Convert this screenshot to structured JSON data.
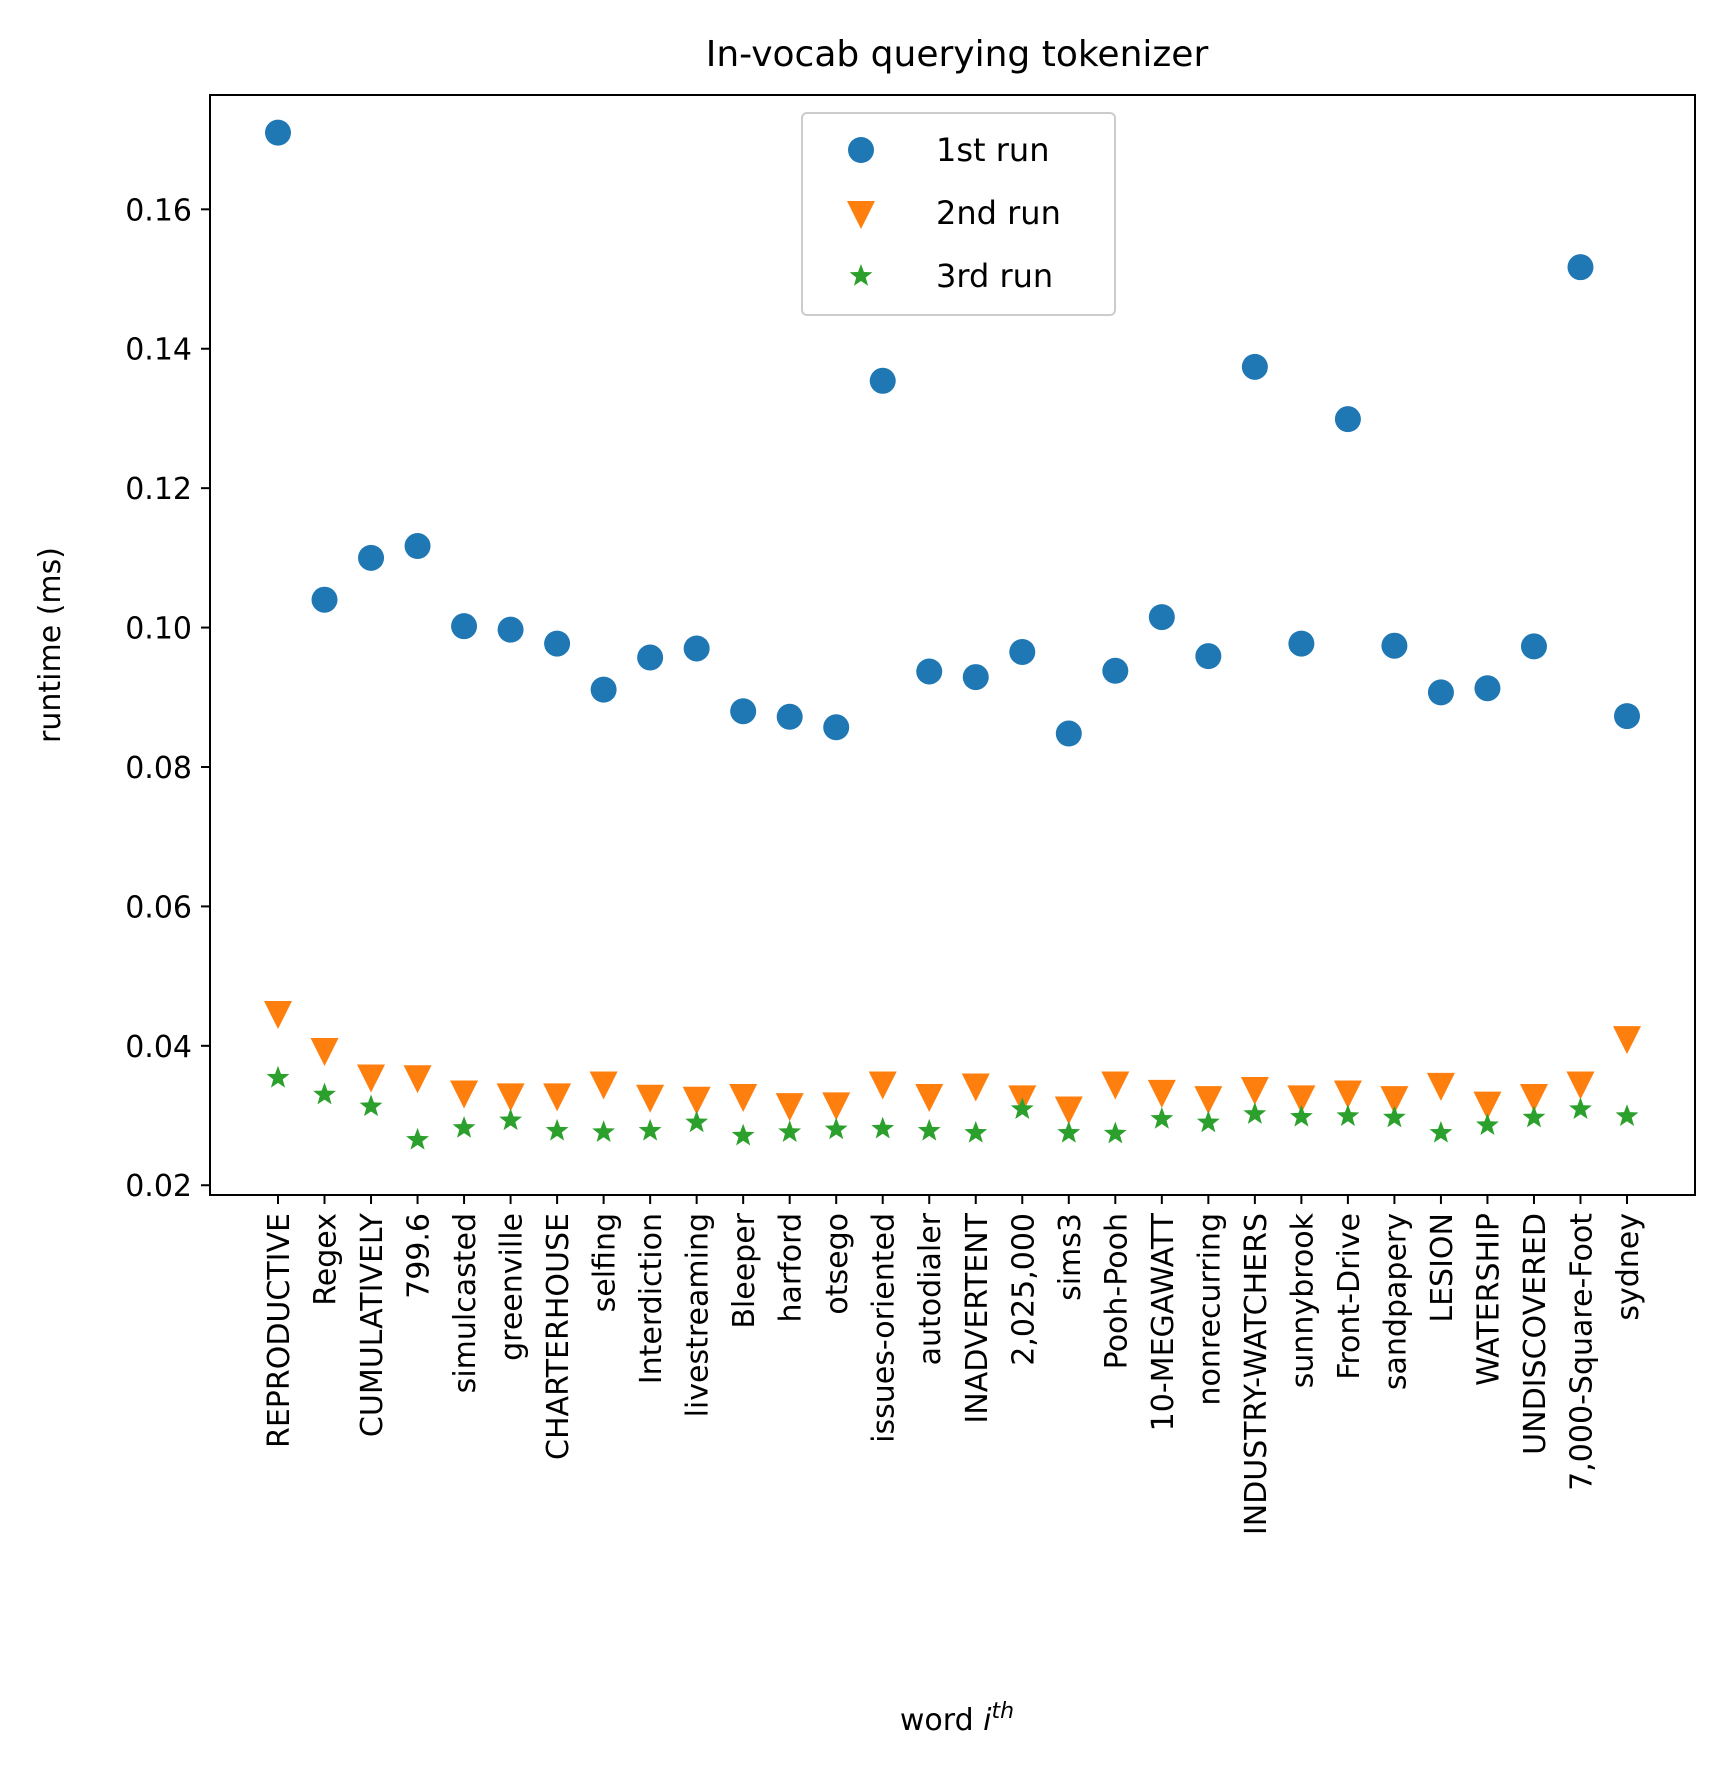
{
  "chart_data": {
    "type": "scatter",
    "title": "In-vocab querying tokenizer",
    "xlabel": "word i^th",
    "xlabel_main": "word ",
    "xlabel_italic": "i",
    "xlabel_sup": "th",
    "ylabel": "runtime (ms)",
    "ylim": [
      0.0186,
      0.1764
    ],
    "yticks": [
      0.02,
      0.04,
      0.06,
      0.08,
      0.1,
      0.12,
      0.14,
      0.16
    ],
    "ytick_labels": [
      "0.02",
      "0.04",
      "0.06",
      "0.08",
      "0.10",
      "0.12",
      "0.14",
      "0.16"
    ],
    "legend_position": "upper center",
    "categories": [
      "REPRODUCTIVE",
      "Regex",
      "CUMULATIVELY",
      "799.6",
      "simulcasted",
      "greenville",
      "CHARTERHOUSE",
      "selfing",
      "Interdiction",
      "livestreaming",
      "Bleeper",
      "harford",
      "otsego",
      "issues-oriented",
      "autodialer",
      "INADVERTENT",
      "2,025,000",
      "sims3",
      "Pooh-Pooh",
      "10-MEGAWATT",
      "nonrecurring",
      "INDUSTRY-WATCHERS",
      "sunnybrook",
      "Front-Drive",
      "sandpapery",
      "LESION",
      "WATERSHIP",
      "UNDISCOVERED",
      "7,000-Square-Foot",
      "sydney"
    ],
    "series": [
      {
        "name": "1st run",
        "marker": "circle",
        "color": "#1f77b4",
        "values": [
          0.171,
          0.104,
          0.11,
          0.1117,
          0.1002,
          0.0997,
          0.0977,
          0.0911,
          0.0957,
          0.097,
          0.088,
          0.0872,
          0.0857,
          0.1354,
          0.0937,
          0.0929,
          0.0965,
          0.0848,
          0.0938,
          0.1015,
          0.0959,
          0.1374,
          0.0977,
          0.1299,
          0.0974,
          0.0907,
          0.0913,
          0.0973,
          0.1517,
          0.0873
        ]
      },
      {
        "name": "2nd run",
        "marker": "triangle-down",
        "color": "#ff7f0e",
        "values": [
          0.0447,
          0.0394,
          0.0356,
          0.0355,
          0.0333,
          0.0329,
          0.0329,
          0.0346,
          0.0327,
          0.0324,
          0.0328,
          0.0315,
          0.0316,
          0.0346,
          0.0328,
          0.0343,
          0.0326,
          0.031,
          0.0346,
          0.0334,
          0.0325,
          0.0338,
          0.0326,
          0.0333,
          0.0325,
          0.0344,
          0.0317,
          0.0328,
          0.0346,
          0.0411
        ]
      },
      {
        "name": "3rd run",
        "marker": "star",
        "color": "#2ca02c",
        "values": [
          0.0354,
          0.033,
          0.0313,
          0.0265,
          0.0282,
          0.0293,
          0.0278,
          0.0276,
          0.0278,
          0.029,
          0.0271,
          0.0276,
          0.028,
          0.0281,
          0.0278,
          0.0275,
          0.0309,
          0.0275,
          0.0274,
          0.0295,
          0.029,
          0.0302,
          0.0298,
          0.0299,
          0.0297,
          0.0275,
          0.0286,
          0.0297,
          0.0309,
          0.0299
        ]
      }
    ]
  }
}
